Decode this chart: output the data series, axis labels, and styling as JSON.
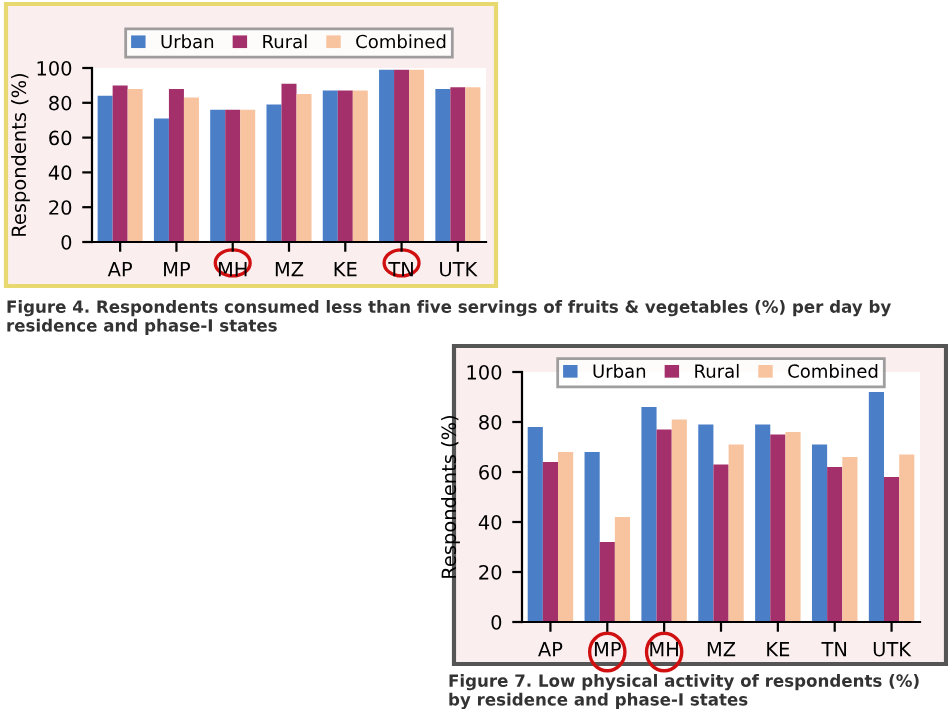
{
  "chart_data": [
    {
      "type": "bar",
      "categories": [
        "AP",
        "MP",
        "MH",
        "MZ",
        "KE",
        "TN",
        "UTK"
      ],
      "ylabel": "Respondents (%)",
      "ylim": [
        0,
        100
      ],
      "yticks": [
        0,
        20,
        40,
        60,
        80,
        100
      ],
      "legend": "top",
      "grid": false,
      "series": [
        {
          "name": "Urban",
          "color": "#4a7fc8",
          "values": [
            84,
            71,
            76,
            79,
            87,
            99,
            88
          ]
        },
        {
          "name": "Rural",
          "color": "#a3306a",
          "values": [
            90,
            88,
            76,
            91,
            87,
            99,
            89
          ]
        },
        {
          "name": "Combined",
          "color": "#f8c4a0",
          "values": [
            88,
            83,
            76,
            85,
            87,
            99,
            89
          ]
        }
      ],
      "annotations": [
        "Figure 4. Respondents consumed less than five servings of fruits & vegetables (%) per day by residence and phase-I states"
      ]
    },
    {
      "type": "bar",
      "categories": [
        "AP",
        "MP",
        "MH",
        "MZ",
        "KE",
        "TN",
        "UTK"
      ],
      "ylabel": "Respondents (%)",
      "ylim": [
        0,
        100
      ],
      "yticks": [
        0,
        20,
        40,
        60,
        80,
        100
      ],
      "legend": "top",
      "grid": false,
      "series": [
        {
          "name": "Urban",
          "color": "#4a7fc8",
          "values": [
            78,
            68,
            86,
            79,
            79,
            71,
            92
          ]
        },
        {
          "name": "Rural",
          "color": "#a3306a",
          "values": [
            64,
            32,
            77,
            63,
            75,
            62,
            58
          ]
        },
        {
          "name": "Combined",
          "color": "#f8c4a0",
          "values": [
            68,
            42,
            81,
            71,
            76,
            66,
            67
          ]
        }
      ],
      "annotations": [
        "Figure 7. Low physical activity of respondents (%) by residence and phase-I states"
      ]
    }
  ]
}
